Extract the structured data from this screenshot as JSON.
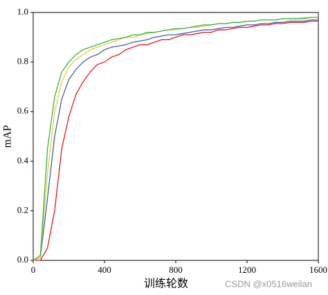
{
  "chart_data": {
    "type": "line",
    "x_label": "训练轮数",
    "y_label": "mAP",
    "watermark": "CSDN @x0516weilan",
    "x": [
      0,
      40,
      80,
      120,
      160,
      200,
      240,
      280,
      320,
      360,
      400,
      440,
      480,
      520,
      560,
      600,
      640,
      680,
      720,
      760,
      800,
      840,
      880,
      920,
      960,
      1000,
      1040,
      1080,
      1120,
      1160,
      1200,
      1240,
      1280,
      1320,
      1360,
      1400,
      1440,
      1480,
      1520,
      1560,
      1600
    ],
    "series": [
      {
        "color": "#e8141b",
        "values": [
          0,
          0,
          0.05,
          0.2,
          0.45,
          0.58,
          0.67,
          0.72,
          0.76,
          0.79,
          0.8,
          0.82,
          0.83,
          0.85,
          0.86,
          0.87,
          0.87,
          0.88,
          0.89,
          0.89,
          0.9,
          0.91,
          0.91,
          0.915,
          0.92,
          0.92,
          0.93,
          0.93,
          0.935,
          0.94,
          0.94,
          0.945,
          0.95,
          0.95,
          0.955,
          0.955,
          0.96,
          0.96,
          0.96,
          0.965,
          0.965
        ]
      },
      {
        "color": "#3d5fb0",
        "values": [
          0,
          0.01,
          0.25,
          0.5,
          0.65,
          0.73,
          0.77,
          0.8,
          0.82,
          0.83,
          0.85,
          0.86,
          0.865,
          0.87,
          0.88,
          0.885,
          0.89,
          0.9,
          0.905,
          0.91,
          0.91,
          0.915,
          0.92,
          0.925,
          0.93,
          0.93,
          0.935,
          0.94,
          0.94,
          0.945,
          0.95,
          0.95,
          0.955,
          0.955,
          0.96,
          0.96,
          0.965,
          0.965,
          0.965,
          0.97,
          0.97
        ]
      },
      {
        "color": "#e2d22a",
        "values": [
          0,
          0.01,
          0.35,
          0.6,
          0.72,
          0.78,
          0.81,
          0.83,
          0.85,
          0.86,
          0.87,
          0.88,
          0.89,
          0.9,
          0.9,
          0.91,
          0.915,
          0.92,
          0.925,
          0.93,
          0.93,
          0.935,
          0.94,
          0.94,
          0.945,
          0.95,
          0.955,
          0.955,
          0.96,
          0.96,
          0.965,
          0.965,
          0.97,
          0.97,
          0.97,
          0.975,
          0.975,
          0.975,
          0.98,
          0.98,
          0.98
        ]
      },
      {
        "color": "#2fb34a",
        "values": [
          0,
          0.02,
          0.45,
          0.66,
          0.76,
          0.8,
          0.83,
          0.85,
          0.86,
          0.87,
          0.88,
          0.89,
          0.895,
          0.9,
          0.91,
          0.91,
          0.92,
          0.92,
          0.925,
          0.93,
          0.935,
          0.935,
          0.94,
          0.945,
          0.95,
          0.95,
          0.955,
          0.955,
          0.96,
          0.96,
          0.965,
          0.965,
          0.97,
          0.97,
          0.97,
          0.975,
          0.975,
          0.975,
          0.975,
          0.98,
          0.98
        ]
      }
    ],
    "xlim": [
      0,
      1600
    ],
    "xticks": [
      0,
      400,
      800,
      1200,
      1600
    ],
    "ylim": [
      0,
      1
    ],
    "yticks": [
      {
        "value": 0,
        "label": "0.0"
      },
      0.2,
      0.4,
      0.6,
      0.8,
      {
        "value": 1,
        "label": "1.0"
      }
    ]
  }
}
